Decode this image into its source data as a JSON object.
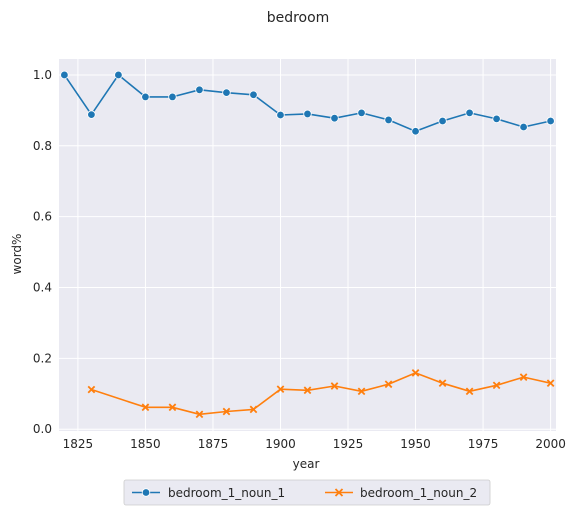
{
  "chart_data": {
    "type": "line",
    "title": "bedroom",
    "xlabel": "year",
    "ylabel": "word%",
    "xlim": [
      1818,
      2002
    ],
    "ylim": [
      -0.005,
      1.045
    ],
    "xticks": [
      1825,
      1850,
      1875,
      1900,
      1925,
      1950,
      1975,
      2000
    ],
    "yticks": [
      0.0,
      0.2,
      0.4,
      0.6,
      0.8,
      1.0
    ],
    "grid": true,
    "legend_position": "bottom-center",
    "background": "#eaeaf2",
    "series": [
      {
        "name": "bedroom_1_noun_1",
        "color": "#1f77b4",
        "marker": "circle",
        "x": [
          1820,
          1830,
          1840,
          1850,
          1860,
          1870,
          1880,
          1890,
          1900,
          1910,
          1920,
          1930,
          1940,
          1950,
          1960,
          1970,
          1980,
          1990,
          2000
        ],
        "values": [
          1.0,
          0.888,
          1.0,
          0.938,
          0.938,
          0.958,
          0.95,
          0.944,
          0.887,
          0.89,
          0.878,
          0.893,
          0.873,
          0.841,
          0.87,
          0.893,
          0.876,
          0.853,
          0.87
        ]
      },
      {
        "name": "bedroom_1_noun_2",
        "color": "#ff7f0e",
        "marker": "x",
        "x": [
          1830,
          1850,
          1860,
          1870,
          1880,
          1890,
          1900,
          1910,
          1920,
          1930,
          1940,
          1950,
          1960,
          1970,
          1980,
          1990,
          2000
        ],
        "values": [
          0.112,
          0.062,
          0.062,
          0.042,
          0.05,
          0.056,
          0.113,
          0.11,
          0.122,
          0.107,
          0.127,
          0.159,
          0.13,
          0.107,
          0.124,
          0.147,
          0.13
        ]
      }
    ]
  }
}
